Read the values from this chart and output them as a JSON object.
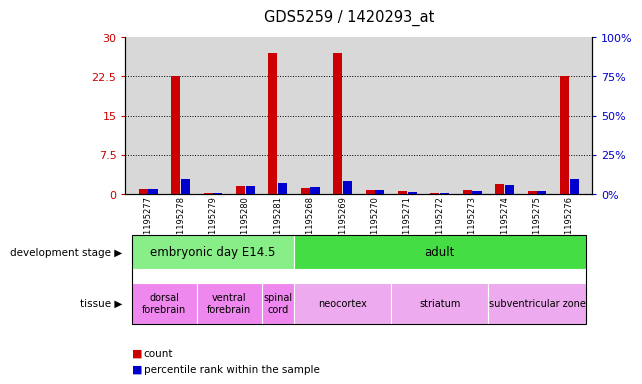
{
  "title": "GDS5259 / 1420293_at",
  "samples": [
    "GSM1195277",
    "GSM1195278",
    "GSM1195279",
    "GSM1195280",
    "GSM1195281",
    "GSM1195268",
    "GSM1195269",
    "GSM1195270",
    "GSM1195271",
    "GSM1195272",
    "GSM1195273",
    "GSM1195274",
    "GSM1195275",
    "GSM1195276"
  ],
  "count": [
    1.0,
    22.5,
    0.3,
    1.5,
    27.0,
    1.2,
    27.0,
    0.8,
    0.5,
    0.3,
    0.7,
    2.0,
    0.6,
    22.5
  ],
  "percentile": [
    3.0,
    9.5,
    1.0,
    5.0,
    7.0,
    4.5,
    8.5,
    2.5,
    1.5,
    1.0,
    2.0,
    6.0,
    2.0,
    9.5
  ],
  "count_color": "#cc0000",
  "percentile_color": "#0000cc",
  "ylim_left": [
    0,
    30
  ],
  "ylim_right": [
    0,
    100
  ],
  "yticks_left": [
    0,
    7.5,
    15,
    22.5,
    30
  ],
  "yticks_right": [
    0,
    25,
    50,
    75,
    100
  ],
  "ytick_labels_left": [
    "0",
    "7.5",
    "15",
    "22.5",
    "30"
  ],
  "ytick_labels_right": [
    "0%",
    "25%",
    "50%",
    "75%",
    "100%"
  ],
  "dev_stage_groups": [
    {
      "label": "embryonic day E14.5",
      "start": 0,
      "end": 4,
      "color": "#88EE88"
    },
    {
      "label": "adult",
      "start": 5,
      "end": 13,
      "color": "#44DD44"
    }
  ],
  "tissue_groups": [
    {
      "label": "dorsal\nforebrain",
      "start": 0,
      "end": 1,
      "color": "#EE88EE"
    },
    {
      "label": "ventral\nforebrain",
      "start": 2,
      "end": 3,
      "color": "#EE88EE"
    },
    {
      "label": "spinal\ncord",
      "start": 4,
      "end": 4,
      "color": "#EE88EE"
    },
    {
      "label": "neocortex",
      "start": 5,
      "end": 7,
      "color": "#EEAAEE"
    },
    {
      "label": "striatum",
      "start": 8,
      "end": 10,
      "color": "#EEAAEE"
    },
    {
      "label": "subventricular zone",
      "start": 11,
      "end": 13,
      "color": "#EEAAEE"
    }
  ],
  "bg_color": "#ffffff",
  "axis_area_color": "#d8d8d8"
}
